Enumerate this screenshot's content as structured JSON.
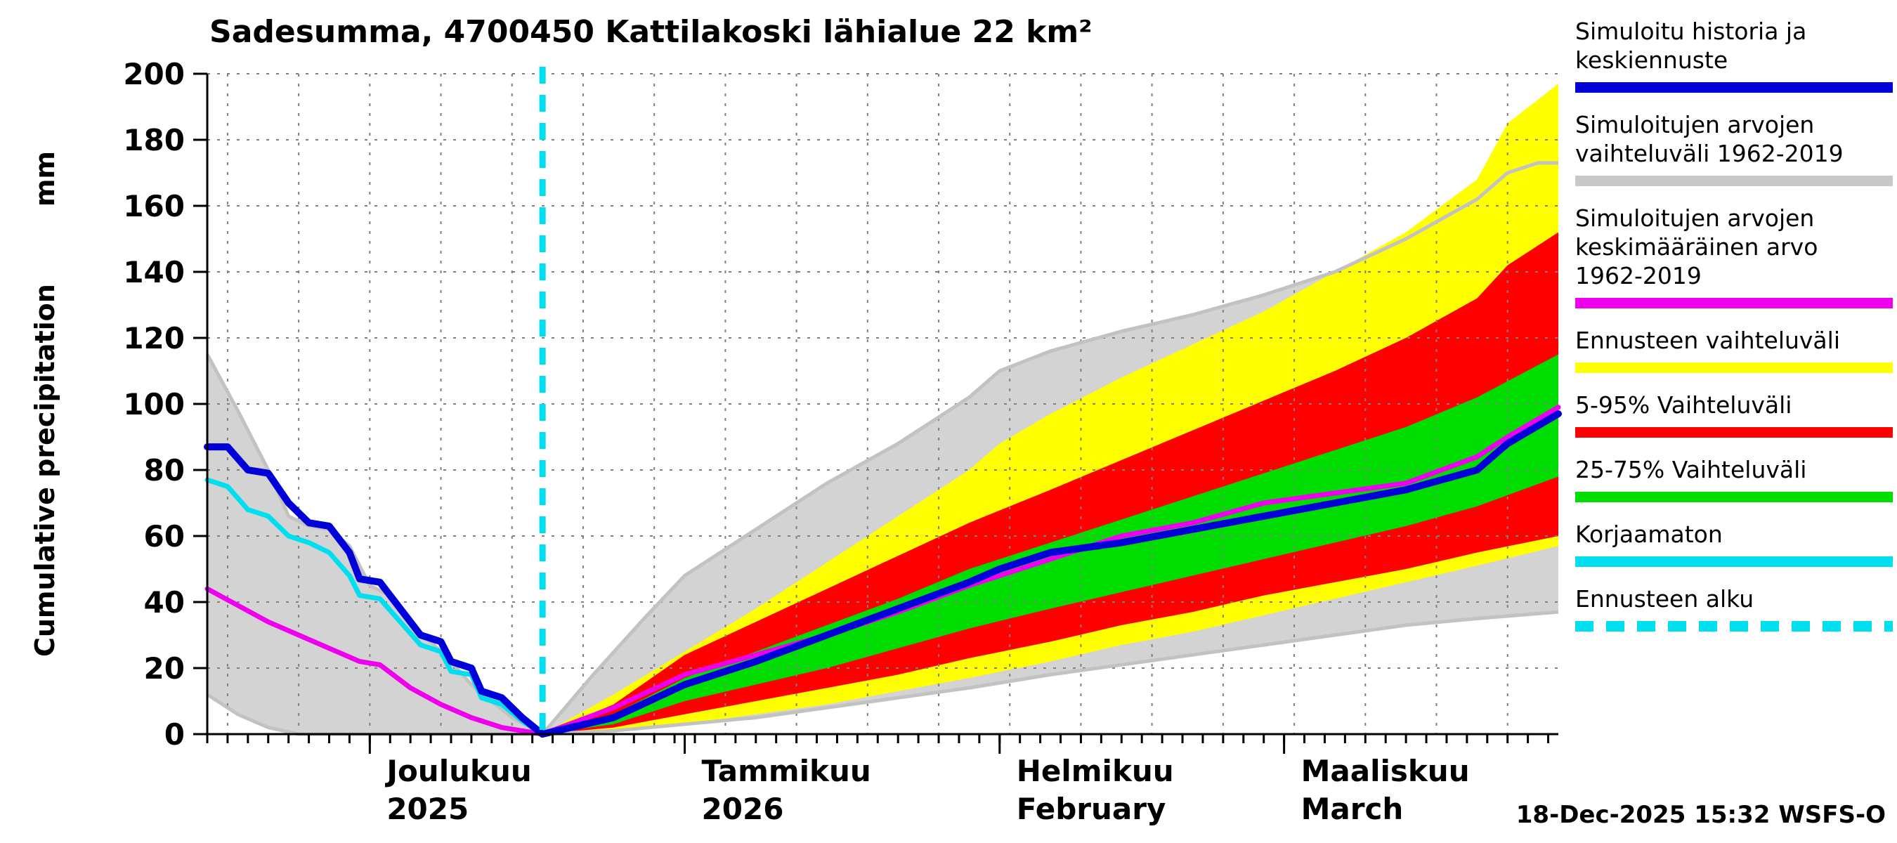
{
  "title": "Sadesumma, 4700450 Kattilakoski lähialue 22 km²",
  "y_axis": {
    "label": "Cumulative precipitation",
    "unit": "mm",
    "min": 0,
    "max": 200,
    "tick_step": 20,
    "ticks": [
      0,
      20,
      40,
      60,
      80,
      100,
      120,
      140,
      160,
      180,
      200
    ]
  },
  "x_axis": {
    "months": [
      {
        "label": "Joulukuu",
        "sublabel": "2025",
        "day": 16
      },
      {
        "label": "Tammikuu",
        "sublabel": "2026",
        "day": 47
      },
      {
        "label": "Helmikuu",
        "sublabel": "February",
        "day": 78
      },
      {
        "label": "Maaliskuu",
        "sublabel": "March",
        "day": 106
      }
    ]
  },
  "footer": {
    "timestamp": "18-Dec-2025 15:32 WSFS-O"
  },
  "legend": [
    {
      "key": "simulated-history",
      "lines": [
        "Simuloitu historia ja",
        "keskiennuste"
      ],
      "color": "#0000d8",
      "style": "solid"
    },
    {
      "key": "simulated-range",
      "lines": [
        "Simuloitujen arvojen",
        "vaihteluväli 1962-2019"
      ],
      "color": "#c8c8c8",
      "style": "solid"
    },
    {
      "key": "simulated-mean",
      "lines": [
        "Simuloitujen arvojen",
        "keskimääräinen arvo",
        "1962-2019"
      ],
      "color": "#ee00ee",
      "style": "solid"
    },
    {
      "key": "forecast-range",
      "lines": [
        "Ennusteen vaihteluväli"
      ],
      "color": "#ffff00",
      "style": "solid"
    },
    {
      "key": "range-5-95",
      "lines": [
        "5-95% Vaihteluväli"
      ],
      "color": "#ff0000",
      "style": "solid"
    },
    {
      "key": "range-25-75",
      "lines": [
        "25-75% Vaihteluväli"
      ],
      "color": "#00dd00",
      "style": "solid"
    },
    {
      "key": "uncorrected",
      "lines": [
        "Korjaamaton"
      ],
      "color": "#00dff0",
      "style": "solid"
    },
    {
      "key": "forecast-start",
      "lines": [
        "Ennusteen alku"
      ],
      "color": "#00dff0",
      "style": "dashed"
    }
  ],
  "chart_data": {
    "type": "area+line",
    "title": "Sadesumma, 4700450 Kattilakoski lähialue 22 km²",
    "ylabel": "Cumulative precipitation mm",
    "x_domain_days": [
      0,
      133
    ],
    "forecast_start_day": 33,
    "y_range": [
      0,
      200
    ],
    "grid": {
      "h_step": 20,
      "v_step": 7,
      "v_start": 2
    },
    "bands": [
      {
        "key": "simulated-range",
        "name": "Simuloitujen arvojen vaihteluväli 1962-2019",
        "color": "#d3d3d3",
        "edge_color": "#c2c2c2",
        "upper": [
          [
            0,
            115
          ],
          [
            3,
            98
          ],
          [
            6,
            80
          ],
          [
            8,
            66
          ],
          [
            10,
            63
          ],
          [
            12,
            62
          ],
          [
            14,
            57
          ],
          [
            16,
            45
          ],
          [
            18,
            42
          ],
          [
            20,
            33
          ],
          [
            22,
            28
          ],
          [
            24,
            22
          ],
          [
            26,
            15
          ],
          [
            28,
            10
          ],
          [
            30,
            5
          ],
          [
            33,
            0
          ],
          [
            38,
            18
          ],
          [
            43,
            35
          ],
          [
            47,
            48
          ],
          [
            54,
            62
          ],
          [
            61,
            76
          ],
          [
            68,
            88
          ],
          [
            75,
            102
          ],
          [
            78,
            110
          ],
          [
            83,
            116
          ],
          [
            90,
            122
          ],
          [
            97,
            127
          ],
          [
            104,
            133
          ],
          [
            111,
            140
          ],
          [
            118,
            150
          ],
          [
            125,
            162
          ],
          [
            128,
            170
          ],
          [
            131,
            173
          ],
          [
            133,
            173
          ]
        ],
        "lower": [
          [
            0,
            12
          ],
          [
            3,
            6
          ],
          [
            6,
            2
          ],
          [
            9,
            0
          ],
          [
            33,
            0
          ],
          [
            40,
            1
          ],
          [
            47,
            3
          ],
          [
            54,
            5
          ],
          [
            61,
            8
          ],
          [
            68,
            11
          ],
          [
            75,
            14
          ],
          [
            83,
            18
          ],
          [
            90,
            21
          ],
          [
            97,
            24
          ],
          [
            104,
            27
          ],
          [
            111,
            30
          ],
          [
            118,
            33
          ],
          [
            125,
            35
          ],
          [
            133,
            37
          ]
        ]
      },
      {
        "key": "forecast-range",
        "name": "Ennusteen vaihteluväli",
        "color": "#ffff00",
        "upper": [
          [
            33,
            0
          ],
          [
            40,
            12
          ],
          [
            47,
            25
          ],
          [
            54,
            38
          ],
          [
            61,
            52
          ],
          [
            68,
            66
          ],
          [
            75,
            80
          ],
          [
            78,
            88
          ],
          [
            83,
            97
          ],
          [
            90,
            108
          ],
          [
            97,
            118
          ],
          [
            104,
            128
          ],
          [
            111,
            140
          ],
          [
            118,
            152
          ],
          [
            125,
            168
          ],
          [
            128,
            185
          ],
          [
            133,
            197
          ]
        ],
        "lower": [
          [
            33,
            0
          ],
          [
            40,
            1
          ],
          [
            47,
            3
          ],
          [
            54,
            6
          ],
          [
            61,
            9
          ],
          [
            68,
            13
          ],
          [
            75,
            17
          ],
          [
            83,
            22
          ],
          [
            90,
            27
          ],
          [
            97,
            31
          ],
          [
            104,
            36
          ],
          [
            111,
            41
          ],
          [
            118,
            46
          ],
          [
            125,
            51
          ],
          [
            133,
            57
          ]
        ]
      },
      {
        "key": "range-5-95",
        "name": "5-95% Vaihteluväli",
        "color": "#ff0000",
        "upper": [
          [
            33,
            0
          ],
          [
            40,
            9
          ],
          [
            47,
            24
          ],
          [
            54,
            34
          ],
          [
            61,
            44
          ],
          [
            68,
            54
          ],
          [
            75,
            64
          ],
          [
            83,
            74
          ],
          [
            90,
            83
          ],
          [
            97,
            92
          ],
          [
            104,
            101
          ],
          [
            111,
            110
          ],
          [
            118,
            120
          ],
          [
            125,
            132
          ],
          [
            128,
            142
          ],
          [
            133,
            152
          ]
        ],
        "lower": [
          [
            33,
            0
          ],
          [
            40,
            2
          ],
          [
            47,
            6
          ],
          [
            54,
            10
          ],
          [
            61,
            14
          ],
          [
            68,
            18
          ],
          [
            75,
            23
          ],
          [
            83,
            28
          ],
          [
            90,
            33
          ],
          [
            97,
            37
          ],
          [
            104,
            42
          ],
          [
            111,
            46
          ],
          [
            118,
            50
          ],
          [
            125,
            55
          ],
          [
            133,
            60
          ]
        ]
      },
      {
        "key": "range-25-75",
        "name": "25-75% Vaihteluväli",
        "color": "#00dd00",
        "upper": [
          [
            33,
            0
          ],
          [
            40,
            6
          ],
          [
            47,
            17
          ],
          [
            54,
            25
          ],
          [
            61,
            33
          ],
          [
            68,
            41
          ],
          [
            75,
            50
          ],
          [
            83,
            58
          ],
          [
            90,
            65
          ],
          [
            97,
            72
          ],
          [
            104,
            79
          ],
          [
            111,
            86
          ],
          [
            118,
            93
          ],
          [
            125,
            102
          ],
          [
            133,
            115
          ]
        ],
        "lower": [
          [
            33,
            0
          ],
          [
            40,
            3
          ],
          [
            47,
            10
          ],
          [
            54,
            15
          ],
          [
            61,
            20
          ],
          [
            68,
            26
          ],
          [
            75,
            32
          ],
          [
            83,
            38
          ],
          [
            90,
            43
          ],
          [
            97,
            48
          ],
          [
            104,
            53
          ],
          [
            111,
            58
          ],
          [
            118,
            63
          ],
          [
            125,
            69
          ],
          [
            133,
            78
          ]
        ]
      }
    ],
    "lines": [
      {
        "key": "simulated-mean",
        "name": "Simuloitujen arvojen keskimääräinen arvo 1962-2019",
        "color": "#ee00ee",
        "width": 7,
        "points": [
          [
            0,
            44
          ],
          [
            3,
            39
          ],
          [
            6,
            34
          ],
          [
            9,
            30
          ],
          [
            12,
            26
          ],
          [
            15,
            22
          ],
          [
            17,
            21
          ],
          [
            20,
            14
          ],
          [
            23,
            9
          ],
          [
            26,
            5
          ],
          [
            29,
            2
          ],
          [
            33,
            0
          ],
          [
            40,
            8
          ],
          [
            47,
            18
          ],
          [
            54,
            24
          ],
          [
            61,
            30
          ],
          [
            68,
            37
          ],
          [
            75,
            45
          ],
          [
            78,
            48
          ],
          [
            83,
            53
          ],
          [
            90,
            60
          ],
          [
            97,
            64
          ],
          [
            104,
            70
          ],
          [
            111,
            73
          ],
          [
            118,
            76
          ],
          [
            125,
            84
          ],
          [
            128,
            90
          ],
          [
            133,
            99
          ]
        ]
      },
      {
        "key": "uncorrected",
        "name": "Korjaamaton",
        "color": "#00dff0",
        "width": 7,
        "points": [
          [
            0,
            77
          ],
          [
            2,
            75
          ],
          [
            4,
            68
          ],
          [
            6,
            66
          ],
          [
            8,
            60
          ],
          [
            10,
            58
          ],
          [
            12,
            55
          ],
          [
            14,
            48
          ],
          [
            15,
            42
          ],
          [
            17,
            41
          ],
          [
            19,
            34
          ],
          [
            21,
            27
          ],
          [
            23,
            25
          ],
          [
            24,
            19
          ],
          [
            26,
            18
          ],
          [
            27,
            11
          ],
          [
            29,
            9
          ],
          [
            31,
            4
          ],
          [
            33,
            0
          ]
        ]
      },
      {
        "key": "simulated-history",
        "name": "Simuloitu historia ja keskiennuste",
        "color": "#0000d8",
        "width": 10,
        "points": [
          [
            0,
            87
          ],
          [
            2,
            87
          ],
          [
            4,
            80
          ],
          [
            6,
            79
          ],
          [
            8,
            70
          ],
          [
            10,
            64
          ],
          [
            12,
            63
          ],
          [
            14,
            55
          ],
          [
            15,
            47
          ],
          [
            17,
            46
          ],
          [
            19,
            38
          ],
          [
            21,
            30
          ],
          [
            23,
            28
          ],
          [
            24,
            22
          ],
          [
            26,
            20
          ],
          [
            27,
            13
          ],
          [
            29,
            11
          ],
          [
            31,
            5
          ],
          [
            33,
            0
          ],
          [
            40,
            5
          ],
          [
            47,
            15
          ],
          [
            54,
            22
          ],
          [
            61,
            30
          ],
          [
            68,
            38
          ],
          [
            75,
            46
          ],
          [
            78,
            50
          ],
          [
            83,
            55
          ],
          [
            90,
            58
          ],
          [
            97,
            62
          ],
          [
            104,
            66
          ],
          [
            111,
            70
          ],
          [
            118,
            74
          ],
          [
            125,
            80
          ],
          [
            128,
            88
          ],
          [
            133,
            97
          ]
        ]
      }
    ],
    "vline": {
      "key": "forecast-start",
      "name": "Ennusteen alku",
      "day": 33,
      "color": "#00dff0",
      "style": "dashed"
    }
  }
}
